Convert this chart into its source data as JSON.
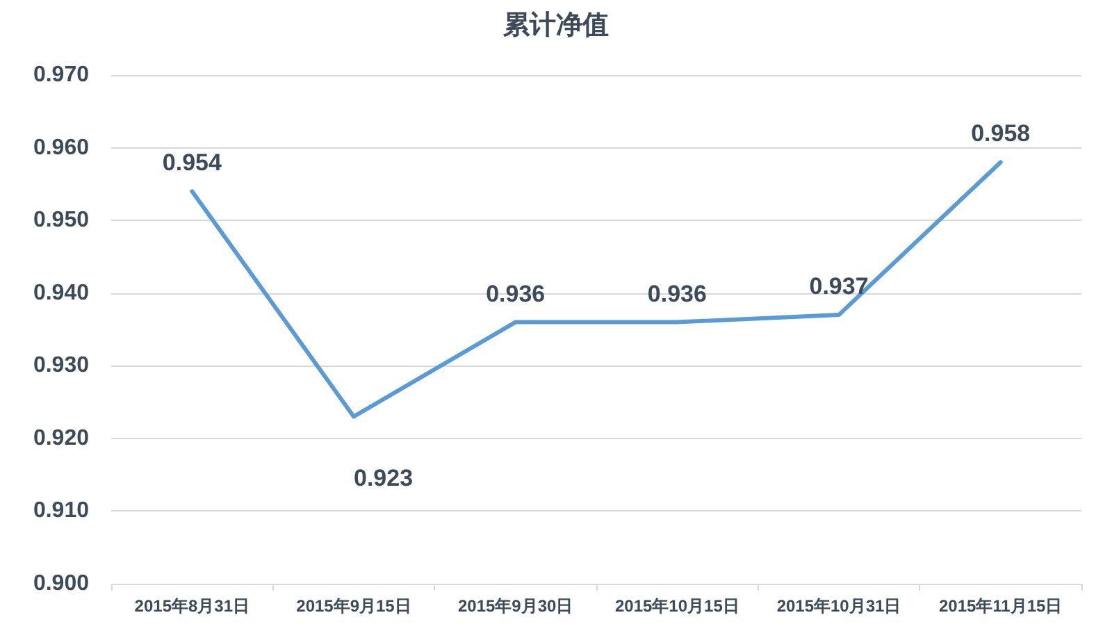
{
  "chart_data": {
    "type": "line",
    "title": "累计净值",
    "categories": [
      "2015年8月31日",
      "2015年9月15日",
      "2015年9月30日",
      "2015年10月15日",
      "2015年10月31日",
      "2015年11月15日"
    ],
    "series": [
      {
        "color": "#5b9bd5",
        "values": [
          0.954,
          0.923,
          0.936,
          0.936,
          0.937,
          0.958
        ]
      }
    ],
    "ylim": [
      0.9,
      0.97
    ],
    "yticks": [
      {
        "value": 0.9,
        "label": "0.900"
      },
      {
        "value": 0.91,
        "label": "0.910"
      },
      {
        "value": 0.92,
        "label": "0.920"
      },
      {
        "value": 0.93,
        "label": "0.930"
      },
      {
        "value": 0.94,
        "label": "0.940"
      },
      {
        "value": 0.95,
        "label": "0.950"
      },
      {
        "value": 0.96,
        "label": "0.960"
      },
      {
        "value": 0.97,
        "label": "0.970"
      }
    ],
    "grid": "y",
    "data_labels": true,
    "marker": "none",
    "line_style": "solid"
  }
}
